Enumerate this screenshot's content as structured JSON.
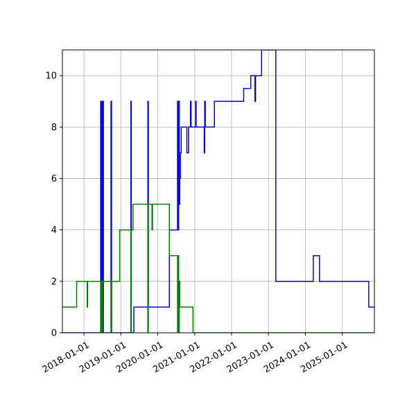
{
  "chart_data": {
    "type": "line",
    "title": "",
    "xlabel": "",
    "ylabel": "",
    "x_axis_type": "date",
    "xlim": [
      "2017-06-01",
      "2025-11-15"
    ],
    "ylim": [
      0,
      11
    ],
    "grid": true,
    "legend": "none",
    "x_tick_labels": [
      "2018-01-01",
      "2019-01-01",
      "2020-01-01",
      "2021-01-01",
      "2022-01-01",
      "2023-01-01",
      "2024-01-01",
      "2025-01-01"
    ],
    "y_tick_labels": [
      "0",
      "2",
      "4",
      "6",
      "8",
      "10"
    ],
    "y_ticks": [
      0,
      2,
      4,
      6,
      8,
      10
    ],
    "series": [
      {
        "color": "#0000ff",
        "step": "post",
        "points": [
          [
            "2017-06-01",
            0
          ],
          [
            "2018-06-15",
            0
          ],
          [
            "2018-06-15",
            9
          ],
          [
            "2018-06-20",
            0
          ],
          [
            "2018-06-22",
            9
          ],
          [
            "2018-06-25",
            2
          ],
          [
            "2018-06-27",
            9
          ],
          [
            "2018-07-01",
            0
          ],
          [
            "2018-07-03",
            9
          ],
          [
            "2018-07-06",
            1
          ],
          [
            "2018-07-08",
            9
          ],
          [
            "2018-07-12",
            0
          ],
          [
            "2018-09-25",
            9
          ],
          [
            "2018-10-01",
            0
          ],
          [
            "2019-04-10",
            9
          ],
          [
            "2019-04-14",
            0
          ],
          [
            "2019-05-10",
            1
          ],
          [
            "2019-09-25",
            9
          ],
          [
            "2019-09-30",
            1
          ],
          [
            "2020-04-25",
            4
          ],
          [
            "2020-07-15",
            9
          ],
          [
            "2020-07-20",
            4
          ],
          [
            "2020-07-26",
            9
          ],
          [
            "2020-08-01",
            5
          ],
          [
            "2020-08-06",
            6
          ],
          [
            "2020-08-12",
            7
          ],
          [
            "2020-08-20",
            8
          ],
          [
            "2020-10-15",
            7
          ],
          [
            "2020-11-01",
            8
          ],
          [
            "2020-11-20",
            9
          ],
          [
            "2020-11-26",
            8
          ],
          [
            "2021-01-10",
            9
          ],
          [
            "2021-01-15",
            8
          ],
          [
            "2021-04-05",
            7
          ],
          [
            "2021-04-10",
            9
          ],
          [
            "2021-04-16",
            8
          ],
          [
            "2021-07-15",
            9
          ],
          [
            "2022-05-01",
            9.5
          ],
          [
            "2022-07-10",
            10
          ],
          [
            "2022-08-20",
            9
          ],
          [
            "2022-08-26",
            10
          ],
          [
            "2022-10-25",
            11
          ],
          [
            "2023-03-15",
            2
          ],
          [
            "2024-03-20",
            3
          ],
          [
            "2024-05-20",
            2
          ],
          [
            "2025-09-20",
            1
          ],
          [
            "2025-11-15",
            1
          ]
        ]
      },
      {
        "color": "#008000",
        "step": "post",
        "points": [
          [
            "2017-06-01",
            1
          ],
          [
            "2017-10-20",
            2
          ],
          [
            "2018-02-01",
            1
          ],
          [
            "2018-02-05",
            2
          ],
          [
            "2018-06-15",
            0
          ],
          [
            "2018-06-20",
            2
          ],
          [
            "2018-06-25",
            1
          ],
          [
            "2018-07-01",
            0
          ],
          [
            "2018-07-05",
            2
          ],
          [
            "2018-07-12",
            2
          ],
          [
            "2018-09-25",
            0
          ],
          [
            "2018-10-01",
            2
          ],
          [
            "2018-12-20",
            4
          ],
          [
            "2019-04-10",
            0
          ],
          [
            "2019-04-14",
            4
          ],
          [
            "2019-05-01",
            5
          ],
          [
            "2019-09-25",
            0
          ],
          [
            "2019-09-30",
            5
          ],
          [
            "2019-11-05",
            4
          ],
          [
            "2019-11-10",
            5
          ],
          [
            "2020-04-25",
            3
          ],
          [
            "2020-07-15",
            0
          ],
          [
            "2020-07-20",
            3
          ],
          [
            "2020-07-26",
            0
          ],
          [
            "2020-08-01",
            2
          ],
          [
            "2020-08-06",
            1
          ],
          [
            "2020-12-15",
            0
          ],
          [
            "2025-11-15",
            0
          ]
        ]
      }
    ]
  }
}
